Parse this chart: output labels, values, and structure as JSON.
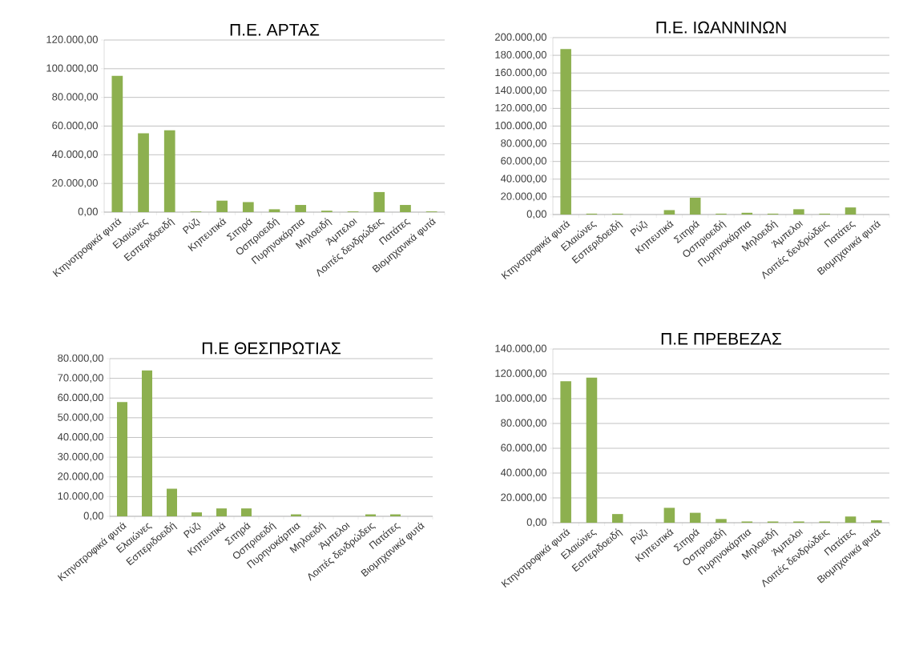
{
  "chart_data": [
    {
      "type": "bar",
      "title": "Π.Ε. ΑΡΤΑΣ",
      "categories": [
        "Κτηνοτροφικά φυτά",
        "Ελαιώνες",
        "Εσπεριδοειδή",
        "Ρύζι",
        "Κηπευτικά",
        "Σιτηρά",
        "Οσπριοειδή",
        "Πυρηνοκάρπια",
        "Μηλοειδή",
        "Άμπελοι",
        "Λοιπές δενδρώδεις",
        "Πατάτες",
        "Βιομηχανικά φυτά"
      ],
      "values": [
        95000,
        55000,
        57000,
        500,
        8000,
        7000,
        2000,
        5000,
        1000,
        500,
        14000,
        5000,
        500
      ],
      "color": "#8db04f",
      "ylim": [
        0,
        120000
      ],
      "yticks": [
        {
          "value": 0,
          "label": "0,00"
        },
        {
          "value": 20000,
          "label": "20.000,00"
        },
        {
          "value": 40000,
          "label": "40.000,00"
        },
        {
          "value": 60000,
          "label": "60.000,00"
        },
        {
          "value": 80000,
          "label": "80.000,00"
        },
        {
          "value": 100000,
          "label": "100.000,00"
        },
        {
          "value": 120000,
          "label": "120.000,00"
        }
      ],
      "grid": "y"
    },
    {
      "type": "bar",
      "title": "Π.Ε. ΙΩΑΝΝΙΝΩΝ",
      "categories": [
        "Κτηνοτροφικά φυτά",
        "Ελαιώνες",
        "Εσπεριδοειδή",
        "Ρύζι",
        "Κηπευτικά",
        "Σιτηρά",
        "Οσπριοειδή",
        "Πυρηνοκάρπια",
        "Μηλοειδή",
        "Άμπελοι",
        "Λοιπές δενδρώδεις",
        "Πατάτες",
        "Βιομηχανικά φυτά"
      ],
      "values": [
        187000,
        1000,
        1000,
        0,
        5000,
        19000,
        1000,
        2000,
        1000,
        6000,
        1000,
        8000,
        0
      ],
      "color": "#8db04f",
      "ylim": [
        0,
        200000
      ],
      "yticks": [
        {
          "value": 0,
          "label": "0,00"
        },
        {
          "value": 20000,
          "label": "20.000,00"
        },
        {
          "value": 40000,
          "label": "40.000,00"
        },
        {
          "value": 60000,
          "label": "60.000,00"
        },
        {
          "value": 80000,
          "label": "80.000,00"
        },
        {
          "value": 100000,
          "label": "100.000,00"
        },
        {
          "value": 120000,
          "label": "120.000,00"
        },
        {
          "value": 140000,
          "label": "140.000,00"
        },
        {
          "value": 160000,
          "label": "160.000,00"
        },
        {
          "value": 180000,
          "label": "180.000,00"
        },
        {
          "value": 200000,
          "label": "200.000,00"
        }
      ],
      "grid": "y"
    },
    {
      "type": "bar",
      "title": "Π.Ε ΘΕΣΠΡΩΤΙΑΣ",
      "categories": [
        "Κτηνοτροφικά φυτά",
        "Ελαιώνες",
        "Εσπεριδοειδή",
        "Ρύζι",
        "Κηπευτικά",
        "Σιτηρά",
        "Οσπριοειδή",
        "Πυρηνοκάρπια",
        "Μηλοειδή",
        "Άμπελοι",
        "Λοιπές δενδρώδεις",
        "Πατάτες",
        "Βιομηχανικά φυτά"
      ],
      "values": [
        58000,
        74000,
        14000,
        2000,
        4000,
        4000,
        0,
        1000,
        0,
        0,
        1000,
        1000,
        0
      ],
      "color": "#8db04f",
      "ylim": [
        0,
        80000
      ],
      "yticks": [
        {
          "value": 0,
          "label": "0,00"
        },
        {
          "value": 10000,
          "label": "10.000,00"
        },
        {
          "value": 20000,
          "label": "20.000,00"
        },
        {
          "value": 30000,
          "label": "30.000,00"
        },
        {
          "value": 40000,
          "label": "40.000,00"
        },
        {
          "value": 50000,
          "label": "50.000,00"
        },
        {
          "value": 60000,
          "label": "60.000,00"
        },
        {
          "value": 70000,
          "label": "70.000,00"
        },
        {
          "value": 80000,
          "label": "80.000,00"
        }
      ],
      "grid": "y"
    },
    {
      "type": "bar",
      "title": "Π.Ε ΠΡΕΒΕΖΑΣ",
      "categories": [
        "Κτηνοτροφικά φυτά",
        "Ελαιώνες",
        "Εσπεριδοειδή",
        "Ρύζι",
        "Κηπευτικά",
        "Σιτηρά",
        "Οσπριοειδή",
        "Πυρηνοκάρπια",
        "Μηλοειδή",
        "Άμπελοι",
        "Λοιπές δενδρώδεις",
        "Πατάτες",
        "Βιομηχανικά φυτά"
      ],
      "values": [
        114000,
        117000,
        7000,
        0,
        12000,
        8000,
        3000,
        1000,
        1000,
        1000,
        1000,
        5000,
        2000
      ],
      "color": "#8db04f",
      "ylim": [
        0,
        140000
      ],
      "yticks": [
        {
          "value": 0,
          "label": "0,00"
        },
        {
          "value": 20000,
          "label": "20.000,00"
        },
        {
          "value": 40000,
          "label": "40.000,00"
        },
        {
          "value": 60000,
          "label": "60.000,00"
        },
        {
          "value": 80000,
          "label": "80.000,00"
        },
        {
          "value": 100000,
          "label": "100.000,00"
        },
        {
          "value": 120000,
          "label": "120.000,00"
        },
        {
          "value": 140000,
          "label": "140.000,00"
        }
      ],
      "grid": "y"
    }
  ]
}
